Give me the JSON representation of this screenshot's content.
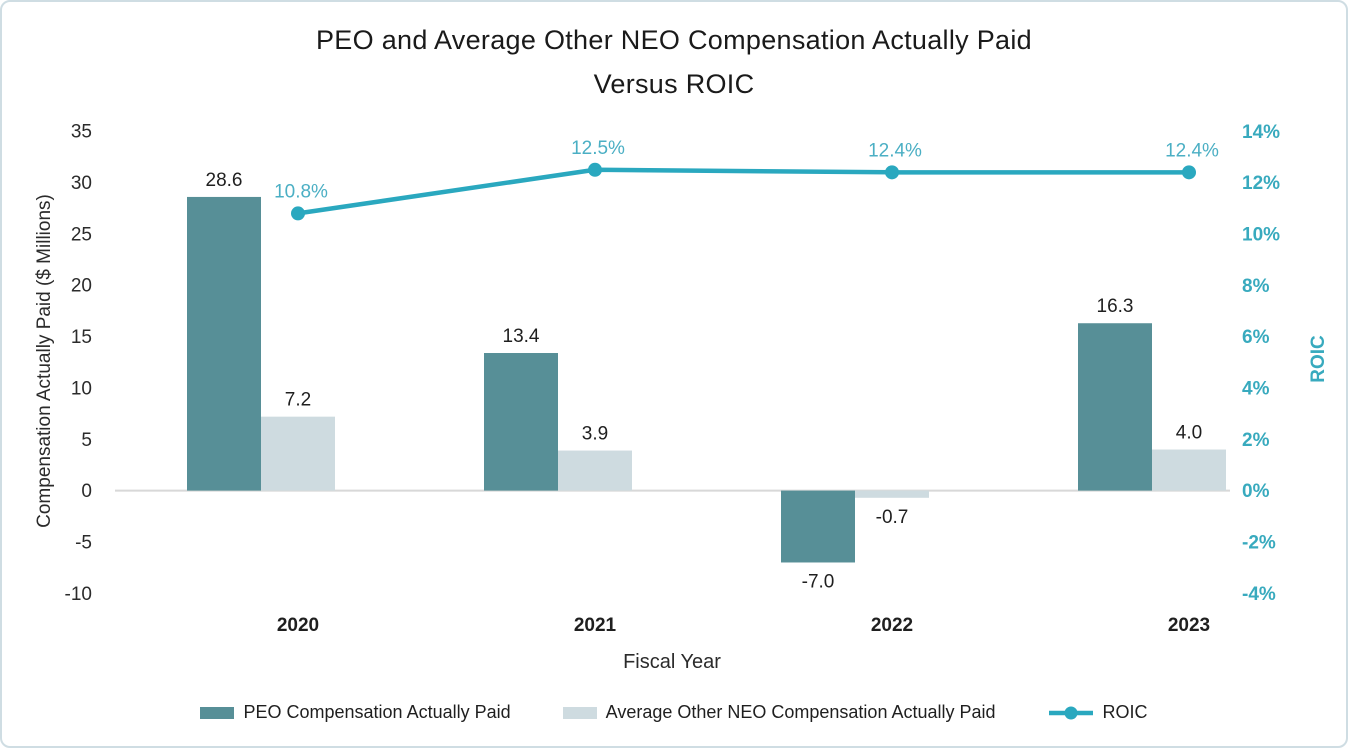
{
  "title": {
    "line1": "PEO and Average Other NEO Compensation Actually Paid",
    "line2": "Versus ROIC"
  },
  "chart_data": {
    "type": "bar+line combo, dual axis",
    "categories": [
      "2020",
      "2021",
      "2022",
      "2023"
    ],
    "series": [
      {
        "name": "PEO Compensation Actually Paid",
        "type": "bar",
        "axis": "left",
        "values": [
          28.6,
          13.4,
          -7.0,
          16.3
        ],
        "labels": [
          "28.6",
          "13.4",
          "-7.0",
          "16.3"
        ],
        "color": "#578f97"
      },
      {
        "name": "Average Other NEO Compensation Actually Paid",
        "type": "bar",
        "axis": "left",
        "values": [
          7.2,
          3.9,
          -0.7,
          4.0
        ],
        "labels": [
          "7.2",
          "3.9",
          "-0.7",
          "4.0"
        ],
        "color": "#cedbe0"
      },
      {
        "name": "ROIC",
        "type": "line",
        "axis": "right",
        "values": [
          10.8,
          12.5,
          12.4,
          12.4
        ],
        "labels": [
          "10.8%",
          "12.5%",
          "12.4%",
          "12.4%"
        ],
        "color": "#2aa8bf",
        "label_color": "#4bafc4"
      }
    ],
    "left_axis": {
      "title": "Compensation Actually Paid ($ Millions)",
      "min": -10,
      "max": 35,
      "step": 5,
      "ticks": [
        "35",
        "30",
        "25",
        "20",
        "15",
        "10",
        "5",
        "0",
        "-5",
        "-10"
      ]
    },
    "right_axis": {
      "title": "ROIC",
      "min": -4,
      "max": 14,
      "step": 2,
      "ticks": [
        "14%",
        "12%",
        "10%",
        "8%",
        "6%",
        "4%",
        "2%",
        "0%",
        "-2%",
        "-4%"
      ],
      "color": "#38aabe"
    },
    "x_axis": {
      "title": "Fiscal Year"
    },
    "legend_position": "bottom",
    "grid": false,
    "zero_line_color": "#d8d8d8"
  }
}
